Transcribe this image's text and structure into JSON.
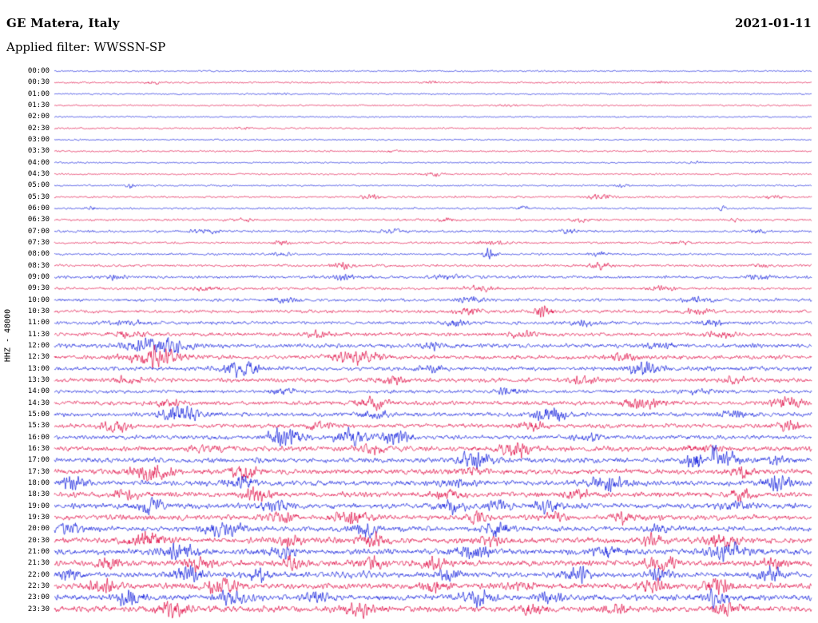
{
  "header": {
    "station": "GE Matera, Italy",
    "date": "2021-01-11",
    "filter": "Applied filter: WWSSN-SP"
  },
  "axis": {
    "ylabel": "HHZ - 48000"
  },
  "chart_data": {
    "type": "line",
    "subtype": "helicorder-dayplot",
    "title": "GE Matera, Italy",
    "subtitle": "Applied filter: WWSSN-SP",
    "date": "2021-01-11",
    "ylabel": "HHZ - 48000",
    "row_interval_minutes": 30,
    "rows_count": 48,
    "x_range_per_row_minutes": [
      0,
      30
    ],
    "legend": "none",
    "grid": false,
    "colors": {
      "even_rows": "#1420dc",
      "odd_rows": "#e01048"
    },
    "bursts_format": "[center_fraction_of_row, half_width_fraction, amplitude_px, optional_osc_freq]",
    "rows": [
      {
        "label": "00:00",
        "color": "#1420dc",
        "base_amp": 0.7,
        "bursts": []
      },
      {
        "label": "00:30",
        "color": "#e01048",
        "base_amp": 0.8,
        "bursts": [
          [
            0.13,
            0.01,
            1.2
          ],
          [
            0.5,
            0.01,
            1.0
          ],
          [
            0.8,
            0.01,
            1.0
          ]
        ]
      },
      {
        "label": "01:00",
        "color": "#1420dc",
        "base_amp": 0.7,
        "bursts": [
          [
            0.3,
            0.01,
            1.0
          ]
        ]
      },
      {
        "label": "01:30",
        "color": "#e01048",
        "base_amp": 0.8,
        "bursts": [
          [
            0.6,
            0.01,
            1.2
          ]
        ]
      },
      {
        "label": "02:00",
        "color": "#1420dc",
        "base_amp": 0.7,
        "bursts": []
      },
      {
        "label": "02:30",
        "color": "#e01048",
        "base_amp": 0.8,
        "bursts": [
          [
            0.25,
            0.01,
            1.0
          ],
          [
            0.7,
            0.01,
            1.0
          ]
        ]
      },
      {
        "label": "03:00",
        "color": "#1420dc",
        "base_amp": 0.7,
        "bursts": []
      },
      {
        "label": "03:30",
        "color": "#e01048",
        "base_amp": 0.8,
        "bursts": [
          [
            0.45,
            0.01,
            1.0
          ]
        ]
      },
      {
        "label": "04:00",
        "color": "#1420dc",
        "base_amp": 0.7,
        "bursts": [
          [
            0.85,
            0.01,
            1.0
          ]
        ]
      },
      {
        "label": "04:30",
        "color": "#e01048",
        "base_amp": 0.8,
        "bursts": [
          [
            0.5,
            0.012,
            1.6
          ]
        ]
      },
      {
        "label": "05:00",
        "color": "#1420dc",
        "base_amp": 0.8,
        "bursts": [
          [
            0.1,
            0.006,
            2.2
          ],
          [
            0.75,
            0.01,
            1.2
          ]
        ]
      },
      {
        "label": "05:30",
        "color": "#e01048",
        "base_amp": 0.9,
        "bursts": [
          [
            0.42,
            0.012,
            2.0
          ],
          [
            0.72,
            0.015,
            2.8
          ],
          [
            0.95,
            0.01,
            1.5
          ]
        ]
      },
      {
        "label": "06:00",
        "color": "#1420dc",
        "base_amp": 0.9,
        "bursts": [
          [
            0.05,
            0.006,
            1.8
          ],
          [
            0.62,
            0.008,
            1.6
          ],
          [
            0.88,
            0.008,
            2.0
          ]
        ]
      },
      {
        "label": "06:30",
        "color": "#e01048",
        "base_amp": 1.0,
        "bursts": [
          [
            0.25,
            0.015,
            1.4
          ],
          [
            0.52,
            0.015,
            1.5
          ],
          [
            0.7,
            0.015,
            1.6
          ],
          [
            0.9,
            0.01,
            1.4
          ]
        ]
      },
      {
        "label": "07:00",
        "color": "#1420dc",
        "base_amp": 1.1,
        "bursts": [
          [
            0.2,
            0.02,
            1.5
          ],
          [
            0.45,
            0.02,
            1.5
          ],
          [
            0.68,
            0.012,
            2.0
          ],
          [
            0.93,
            0.01,
            1.6
          ]
        ]
      },
      {
        "label": "07:30",
        "color": "#e01048",
        "base_amp": 1.0,
        "bursts": [
          [
            0.3,
            0.012,
            2.0
          ],
          [
            0.58,
            0.02,
            1.8
          ],
          [
            0.83,
            0.015,
            1.6
          ]
        ]
      },
      {
        "label": "08:00",
        "color": "#1420dc",
        "base_amp": 1.0,
        "bursts": [
          [
            0.575,
            0.008,
            5.0
          ],
          [
            0.3,
            0.015,
            1.6
          ],
          [
            0.72,
            0.015,
            1.8
          ]
        ]
      },
      {
        "label": "08:30",
        "color": "#e01048",
        "base_amp": 1.2,
        "bursts": [
          [
            0.38,
            0.015,
            2.2
          ],
          [
            0.72,
            0.015,
            2.6
          ],
          [
            0.93,
            0.012,
            1.8
          ]
        ]
      },
      {
        "label": "09:00",
        "color": "#1420dc",
        "base_amp": 1.4,
        "bursts": [
          [
            0.08,
            0.01,
            2.2
          ],
          [
            0.38,
            0.015,
            2.4
          ],
          [
            0.52,
            0.015,
            2.2
          ],
          [
            0.93,
            0.012,
            2.4
          ]
        ]
      },
      {
        "label": "09:30",
        "color": "#e01048",
        "base_amp": 1.3,
        "bursts": [
          [
            0.2,
            0.02,
            1.8
          ],
          [
            0.56,
            0.02,
            2.0
          ],
          [
            0.8,
            0.02,
            1.8
          ]
        ]
      },
      {
        "label": "10:00",
        "color": "#1420dc",
        "base_amp": 1.4,
        "bursts": [
          [
            0.3,
            0.02,
            2.0
          ],
          [
            0.55,
            0.015,
            2.8
          ],
          [
            0.85,
            0.02,
            2.0
          ]
        ]
      },
      {
        "label": "10:30",
        "color": "#e01048",
        "base_amp": 1.5,
        "bursts": [
          [
            0.55,
            0.015,
            3.5
          ],
          [
            0.645,
            0.012,
            6.0
          ],
          [
            0.85,
            0.02,
            2.2
          ]
        ]
      },
      {
        "label": "11:00",
        "color": "#1420dc",
        "base_amp": 1.6,
        "bursts": [
          [
            0.1,
            0.02,
            2.2
          ],
          [
            0.53,
            0.012,
            4.0
          ],
          [
            0.7,
            0.015,
            2.6
          ],
          [
            0.87,
            0.012,
            4.0
          ]
        ]
      },
      {
        "label": "11:30",
        "color": "#e01048",
        "base_amp": 1.8,
        "bursts": [
          [
            0.1,
            0.02,
            2.6
          ],
          [
            0.35,
            0.02,
            2.4
          ],
          [
            0.62,
            0.02,
            2.6
          ],
          [
            0.88,
            0.02,
            2.6
          ]
        ]
      },
      {
        "label": "12:00",
        "color": "#1420dc",
        "base_amp": 2.0,
        "bursts": [
          [
            0.135,
            0.035,
            8.0
          ],
          [
            0.5,
            0.02,
            2.4
          ],
          [
            0.8,
            0.02,
            2.4
          ]
        ]
      },
      {
        "label": "12:30",
        "color": "#e01048",
        "base_amp": 2.0,
        "bursts": [
          [
            0.135,
            0.035,
            8.0
          ],
          [
            0.4,
            0.03,
            6.0
          ],
          [
            0.75,
            0.02,
            2.6
          ]
        ]
      },
      {
        "label": "13:00",
        "color": "#1420dc",
        "base_amp": 2.0,
        "bursts": [
          [
            0.245,
            0.025,
            7.0
          ],
          [
            0.78,
            0.022,
            6.0
          ],
          [
            0.5,
            0.02,
            2.4
          ]
        ]
      },
      {
        "label": "13:30",
        "color": "#e01048",
        "base_amp": 2.0,
        "bursts": [
          [
            0.1,
            0.02,
            2.8
          ],
          [
            0.45,
            0.02,
            2.6
          ],
          [
            0.7,
            0.02,
            2.8
          ],
          [
            0.9,
            0.02,
            2.6
          ]
        ]
      },
      {
        "label": "14:00",
        "color": "#1420dc",
        "base_amp": 1.6,
        "bursts": [
          [
            0.6,
            0.015,
            3.0
          ],
          [
            0.3,
            0.02,
            2.2
          ],
          [
            0.85,
            0.02,
            2.2
          ]
        ]
      },
      {
        "label": "14:30",
        "color": "#e01048",
        "base_amp": 2.0,
        "bursts": [
          [
            0.42,
            0.02,
            6.0
          ],
          [
            0.78,
            0.025,
            5.0
          ],
          [
            0.97,
            0.02,
            6.0
          ],
          [
            0.15,
            0.02,
            2.6
          ]
        ]
      },
      {
        "label": "15:00",
        "color": "#1420dc",
        "base_amp": 2.0,
        "bursts": [
          [
            0.165,
            0.025,
            8.0
          ],
          [
            0.655,
            0.022,
            7.0
          ],
          [
            0.42,
            0.02,
            2.8
          ],
          [
            0.9,
            0.02,
            3.0
          ]
        ]
      },
      {
        "label": "15:30",
        "color": "#e01048",
        "base_amp": 2.0,
        "bursts": [
          [
            0.08,
            0.018,
            5.5
          ],
          [
            0.63,
            0.02,
            3.2
          ],
          [
            0.97,
            0.015,
            5.0
          ],
          [
            0.35,
            0.02,
            2.6
          ]
        ]
      },
      {
        "label": "16:00",
        "color": "#1420dc",
        "base_amp": 2.0,
        "bursts": [
          [
            0.305,
            0.025,
            8.0
          ],
          [
            0.39,
            0.02,
            7.0
          ],
          [
            0.45,
            0.018,
            7.0
          ],
          [
            0.7,
            0.02,
            2.8
          ]
        ]
      },
      {
        "label": "16:30",
        "color": "#e01048",
        "base_amp": 2.4,
        "bursts": [
          [
            0.61,
            0.02,
            7.0
          ],
          [
            0.2,
            0.02,
            3.0
          ],
          [
            0.42,
            0.02,
            3.0
          ],
          [
            0.85,
            0.02,
            3.2
          ]
        ]
      },
      {
        "label": "17:00",
        "color": "#1420dc",
        "base_amp": 2.4,
        "bursts": [
          [
            0.555,
            0.022,
            7.0
          ],
          [
            0.845,
            0.012,
            8.0
          ],
          [
            0.872,
            0.003,
            22.0
          ],
          [
            0.89,
            0.012,
            8.0
          ],
          [
            0.95,
            0.02,
            3.5
          ]
        ]
      },
      {
        "label": "17:30",
        "color": "#e01048",
        "base_amp": 2.5,
        "bursts": [
          [
            0.125,
            0.025,
            7.0
          ],
          [
            0.25,
            0.018,
            6.0
          ],
          [
            0.55,
            0.02,
            3.0
          ],
          [
            0.91,
            0.015,
            4.5
          ]
        ]
      },
      {
        "label": "18:00",
        "color": "#1420dc",
        "base_amp": 2.5,
        "bursts": [
          [
            0.025,
            0.015,
            6.0
          ],
          [
            0.245,
            0.02,
            6.5
          ],
          [
            0.53,
            0.02,
            3.0
          ],
          [
            0.73,
            0.022,
            7.0
          ],
          [
            0.955,
            0.018,
            7.0
          ]
        ]
      },
      {
        "label": "18:30",
        "color": "#e01048",
        "base_amp": 2.5,
        "bursts": [
          [
            0.095,
            0.015,
            5.0
          ],
          [
            0.27,
            0.018,
            6.0
          ],
          [
            0.52,
            0.018,
            5.0
          ],
          [
            0.69,
            0.015,
            4.5
          ],
          [
            0.91,
            0.015,
            5.0
          ]
        ]
      },
      {
        "label": "19:00",
        "color": "#1420dc",
        "base_amp": 2.5,
        "bursts": [
          [
            0.125,
            0.018,
            6.0
          ],
          [
            0.29,
            0.018,
            6.0
          ],
          [
            0.525,
            0.018,
            6.0
          ],
          [
            0.585,
            0.015,
            5.0
          ],
          [
            0.655,
            0.018,
            6.0
          ],
          [
            0.9,
            0.02,
            3.0
          ]
        ]
      },
      {
        "label": "19:30",
        "color": "#e01048",
        "base_amp": 2.5,
        "bursts": [
          [
            0.3,
            0.018,
            4.5
          ],
          [
            0.395,
            0.025,
            6.0
          ],
          [
            0.56,
            0.015,
            4.0
          ],
          [
            0.66,
            0.015,
            4.0
          ],
          [
            0.75,
            0.015,
            4.5
          ]
        ]
      },
      {
        "label": "20:00",
        "color": "#1420dc",
        "base_amp": 2.5,
        "bursts": [
          [
            0.02,
            0.015,
            6.0
          ],
          [
            0.225,
            0.025,
            7.0
          ],
          [
            0.41,
            0.018,
            6.0
          ],
          [
            0.585,
            0.018,
            6.0
          ],
          [
            0.8,
            0.02,
            3.0
          ]
        ]
      },
      {
        "label": "20:30",
        "color": "#e01048",
        "base_amp": 2.8,
        "bursts": [
          [
            0.12,
            0.025,
            7.0
          ],
          [
            0.31,
            0.018,
            5.0
          ],
          [
            0.42,
            0.018,
            5.0
          ],
          [
            0.575,
            0.015,
            4.5
          ],
          [
            0.79,
            0.015,
            5.0
          ],
          [
            0.88,
            0.018,
            6.0
          ]
        ]
      },
      {
        "label": "21:00",
        "color": "#1420dc",
        "base_amp": 2.8,
        "bursts": [
          [
            0.165,
            0.02,
            7.0
          ],
          [
            0.3,
            0.018,
            5.0
          ],
          [
            0.555,
            0.02,
            7.0
          ],
          [
            0.73,
            0.018,
            5.0
          ],
          [
            0.89,
            0.025,
            7.0
          ]
        ]
      },
      {
        "label": "21:30",
        "color": "#e01048",
        "base_amp": 2.8,
        "bursts": [
          [
            0.075,
            0.015,
            5.0
          ],
          [
            0.19,
            0.018,
            6.0
          ],
          [
            0.315,
            0.015,
            5.0
          ],
          [
            0.42,
            0.015,
            4.5
          ],
          [
            0.5,
            0.015,
            5.0
          ],
          [
            0.8,
            0.02,
            6.0
          ],
          [
            0.95,
            0.015,
            4.5
          ]
        ]
      },
      {
        "label": "22:00",
        "color": "#1420dc",
        "base_amp": 2.5,
        "bursts": [
          [
            0.02,
            0.015,
            6.0
          ],
          [
            0.175,
            0.02,
            6.5
          ],
          [
            0.27,
            0.015,
            5.0
          ],
          [
            0.4,
            0.05,
            2.5,
            900
          ],
          [
            0.52,
            0.015,
            5.0
          ],
          [
            0.69,
            0.018,
            6.0
          ],
          [
            0.8,
            0.015,
            5.0
          ],
          [
            0.945,
            0.018,
            7.0
          ]
        ]
      },
      {
        "label": "22:30",
        "color": "#e01048",
        "base_amp": 2.8,
        "bursts": [
          [
            0.065,
            0.018,
            6.0
          ],
          [
            0.22,
            0.02,
            6.0
          ],
          [
            0.5,
            0.015,
            5.0
          ],
          [
            0.615,
            0.015,
            5.0
          ],
          [
            0.79,
            0.015,
            5.0
          ],
          [
            0.875,
            0.018,
            6.0
          ]
        ]
      },
      {
        "label": "23:00",
        "color": "#1420dc",
        "base_amp": 2.8,
        "bursts": [
          [
            0.1,
            0.018,
            7.0
          ],
          [
            0.235,
            0.018,
            6.0
          ],
          [
            0.345,
            0.015,
            5.0
          ],
          [
            0.56,
            0.02,
            7.0
          ],
          [
            0.655,
            0.015,
            5.0
          ],
          [
            0.875,
            0.018,
            7.0
          ]
        ]
      },
      {
        "label": "23:30",
        "color": "#e01048",
        "base_amp": 2.8,
        "bursts": [
          [
            0.155,
            0.02,
            6.0
          ],
          [
            0.4,
            0.02,
            6.0
          ],
          [
            0.63,
            0.018,
            5.0
          ],
          [
            0.745,
            0.015,
            5.0
          ],
          [
            0.885,
            0.018,
            5.5
          ]
        ]
      }
    ]
  }
}
